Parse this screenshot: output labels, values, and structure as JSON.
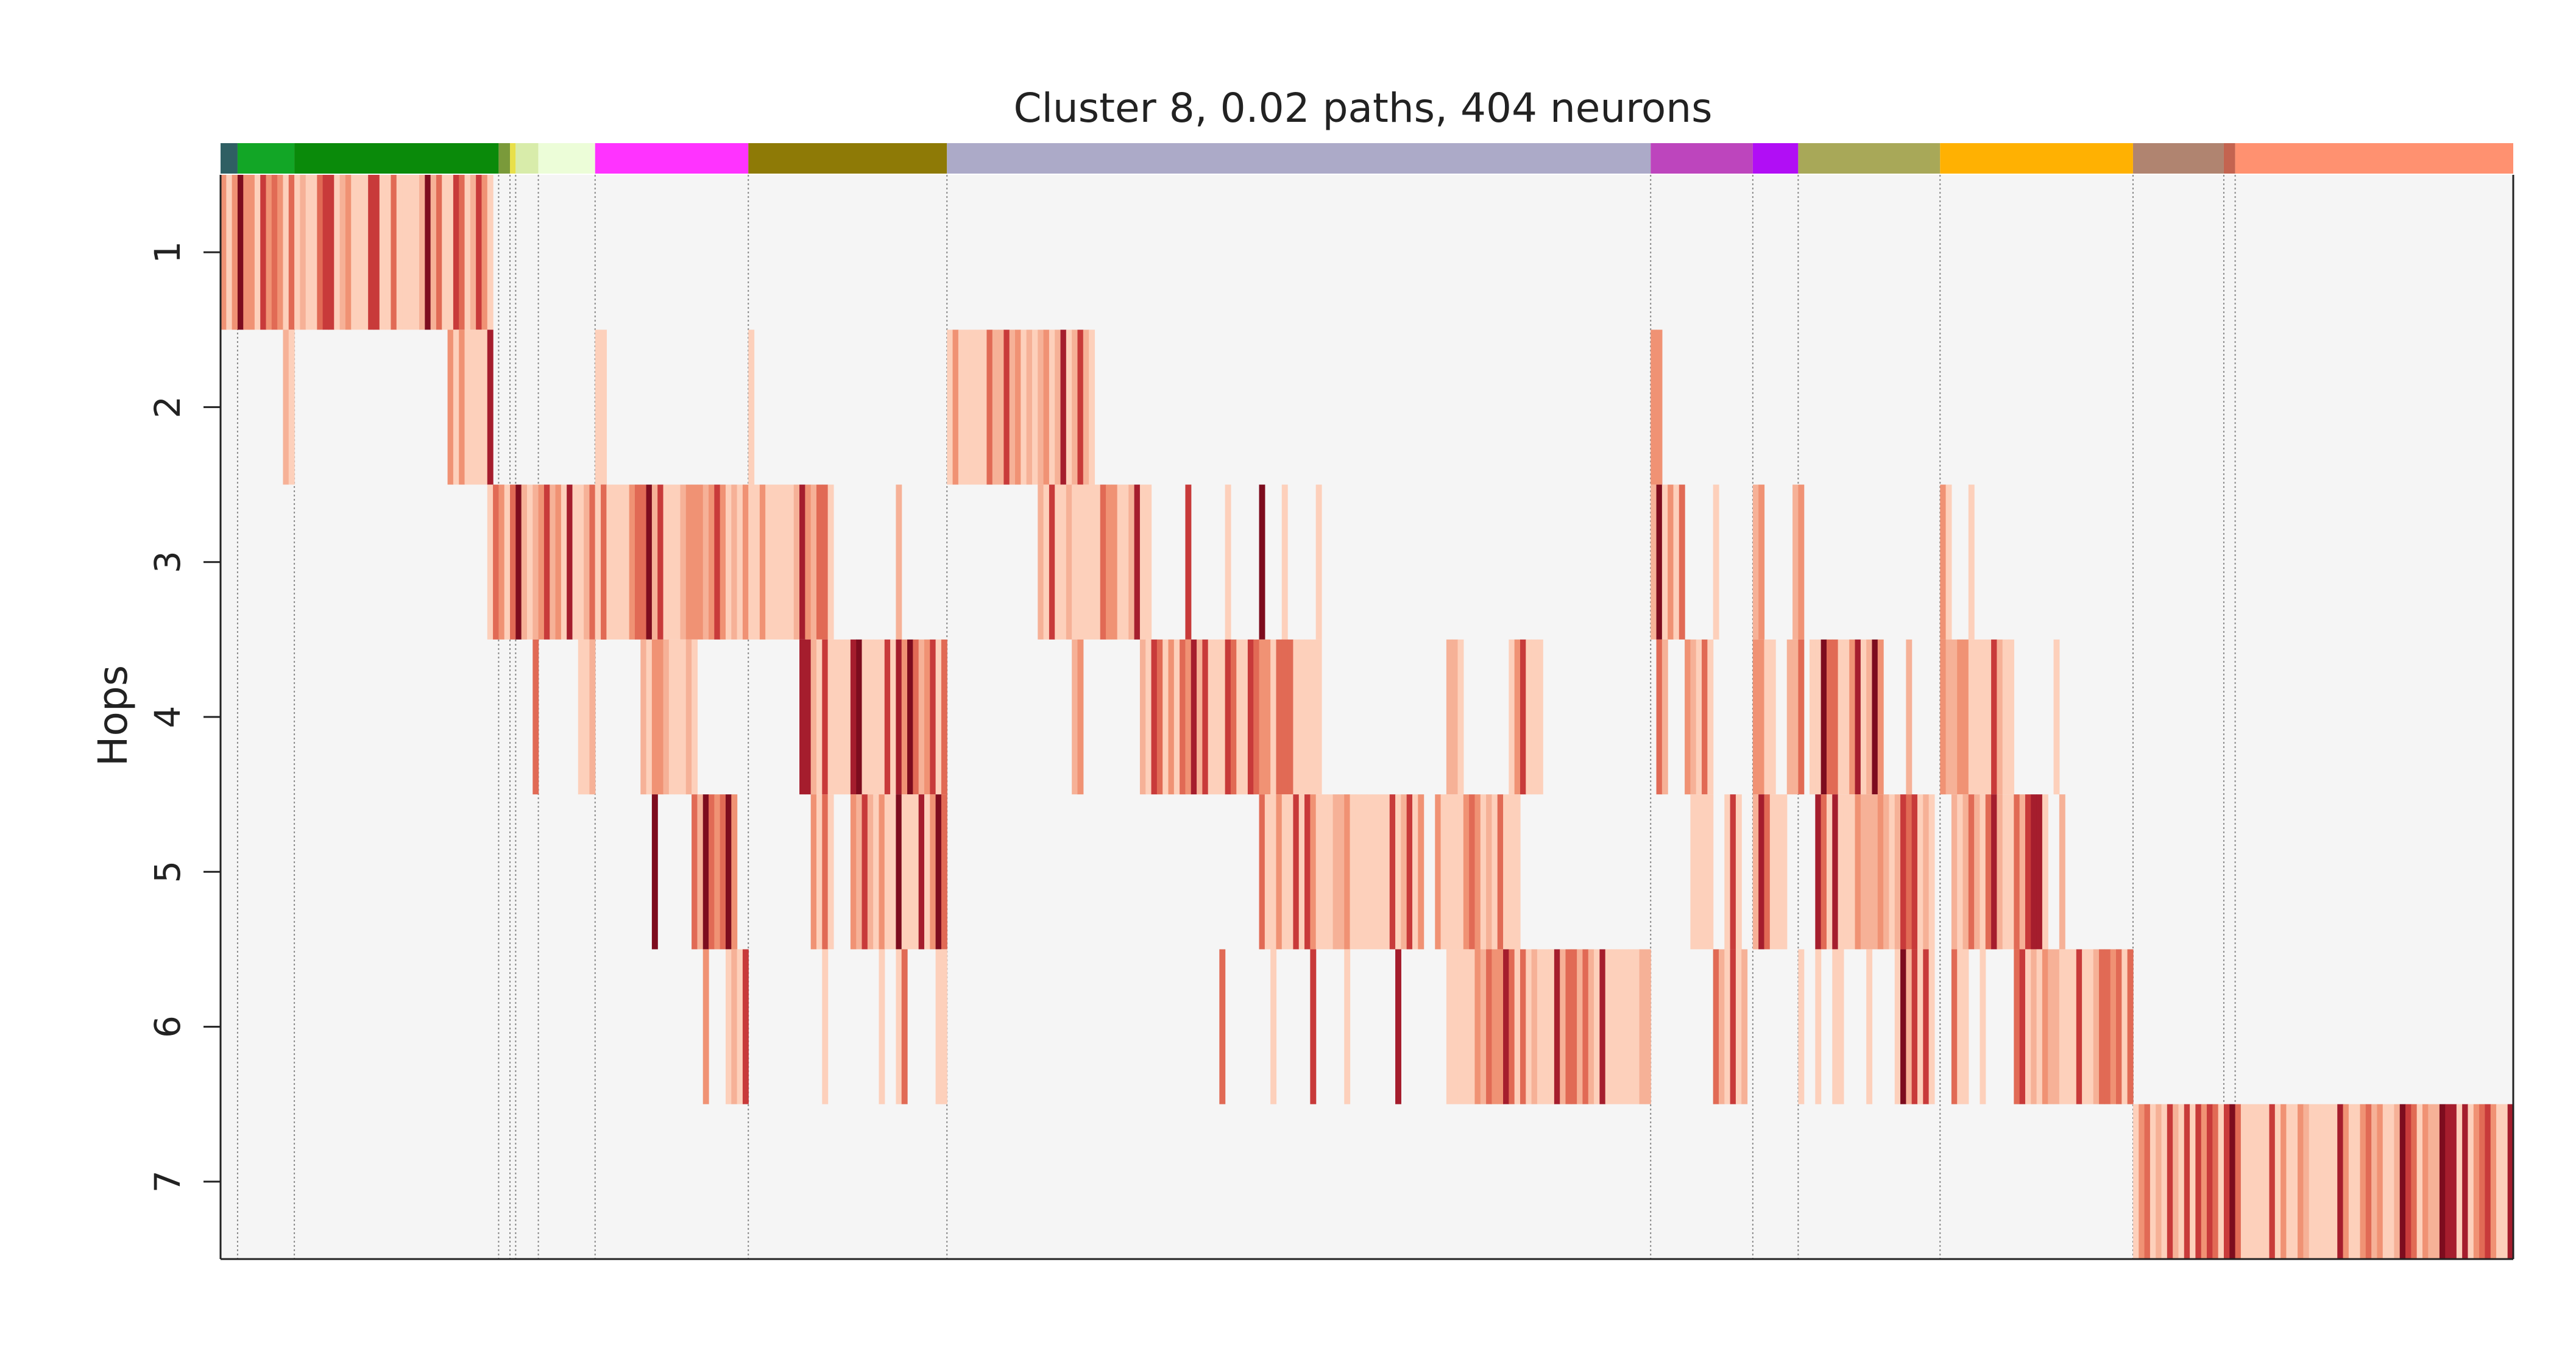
{
  "chart_data": {
    "type": "heatmap",
    "title": "Cluster 8, 0.02 paths, 404 neurons",
    "ylabel": "Hops",
    "xlabel": "",
    "rows": [
      "1",
      "2",
      "3",
      "4",
      "5",
      "6",
      "7"
    ],
    "n_columns": 404,
    "background_color": "#f5f5f5",
    "grid": false,
    "color_scale": [
      "#fdd0bb",
      "#f6b197",
      "#f09274",
      "#e16a55",
      "#c83a3a",
      "#a51d2d",
      "#7d0c1e"
    ],
    "group_bar": {
      "colors": [
        "#2f5f63",
        "#12a626",
        "#0a8a0a",
        "#7a9a3a",
        "#e8e04a",
        "#d8ecaa",
        "#ecfdd8",
        "#ff33ff",
        "#8e7a06",
        "#acaac8",
        "#bd45bd",
        "#b10ef5",
        "#a8a858",
        "#ffb102",
        "#b08470",
        "#c46450",
        "#ff9170"
      ],
      "column_boundaries": [
        0,
        3,
        13,
        49,
        51,
        52,
        56,
        66,
        93,
        128,
        252,
        270,
        278,
        303,
        337,
        353,
        355,
        404
      ]
    },
    "row_column_ranges": [
      [
        [
          0,
          48
        ]
      ],
      [
        [
          11,
          13
        ],
        [
          40,
          48
        ],
        [
          66,
          68
        ],
        [
          93,
          94
        ],
        [
          128,
          154
        ],
        [
          252,
          254
        ]
      ],
      [
        [
          47,
          68
        ],
        [
          66,
          93
        ],
        [
          93,
          108
        ],
        [
          119,
          120
        ],
        [
          144,
          164
        ],
        [
          170,
          171
        ],
        [
          177,
          178
        ],
        [
          183,
          184
        ],
        [
          187,
          188
        ],
        [
          193,
          194
        ],
        [
          252,
          258
        ],
        [
          263,
          264
        ],
        [
          270,
          272
        ],
        [
          277,
          279
        ],
        [
          303,
          305
        ],
        [
          308,
          309
        ]
      ],
      [
        [
          55,
          56
        ],
        [
          63,
          66
        ],
        [
          74,
          84
        ],
        [
          102,
          128
        ],
        [
          150,
          152
        ],
        [
          162,
          194
        ],
        [
          216,
          219
        ],
        [
          227,
          233
        ],
        [
          253,
          255
        ],
        [
          258,
          263
        ],
        [
          270,
          274
        ],
        [
          276,
          279
        ],
        [
          280,
          293
        ],
        [
          297,
          298
        ],
        [
          303,
          316
        ],
        [
          323,
          324
        ]
      ],
      [
        [
          76,
          77
        ],
        [
          83,
          91
        ],
        [
          104,
          108
        ],
        [
          111,
          128
        ],
        [
          183,
          212
        ],
        [
          214,
          229
        ],
        [
          259,
          263
        ],
        [
          265,
          268
        ],
        [
          270,
          276
        ],
        [
          281,
          302
        ],
        [
          305,
          322
        ],
        [
          324,
          325
        ]
      ],
      [
        [
          85,
          86
        ],
        [
          89,
          93
        ],
        [
          106,
          107
        ],
        [
          116,
          117
        ],
        [
          119,
          121
        ],
        [
          126,
          128
        ],
        [
          176,
          177
        ],
        [
          185,
          186
        ],
        [
          192,
          193
        ],
        [
          198,
          199
        ],
        [
          207,
          208
        ],
        [
          216,
          252
        ],
        [
          263,
          269
        ],
        [
          278,
          279
        ],
        [
          281,
          282
        ],
        [
          284,
          286
        ],
        [
          290,
          291
        ],
        [
          295,
          302
        ],
        [
          305,
          308
        ],
        [
          310,
          311
        ],
        [
          316,
          337
        ]
      ],
      [
        [
          337,
          404
        ]
      ]
    ]
  }
}
